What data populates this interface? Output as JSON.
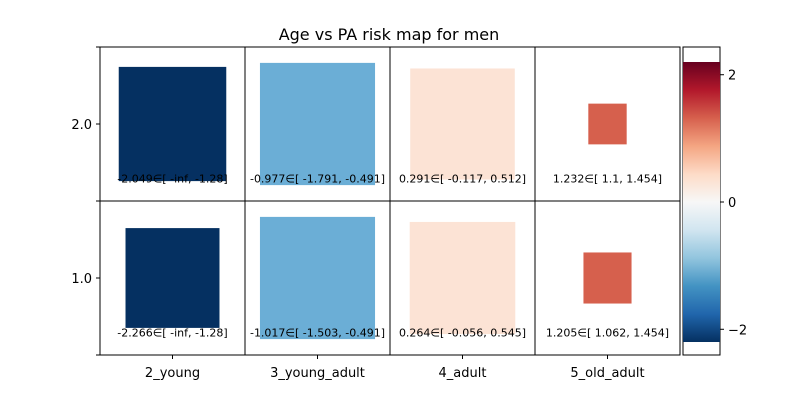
{
  "chart_data": {
    "type": "heatmap",
    "title": "Age vs PA risk map for men",
    "xlabel": "",
    "ylabel": "",
    "x_categories": [
      "2_young",
      "3_young_adult",
      "4_adult",
      "5_old_adult"
    ],
    "y_categories": [
      "2.0",
      "1.0"
    ],
    "cells": [
      {
        "x": "2_young",
        "y": "2.0",
        "value": -2.049,
        "label": "-2.049∈[ -inf, -1.28]",
        "color": "#053061",
        "relative_size": 0.55
      },
      {
        "x": "3_young_adult",
        "y": "2.0",
        "value": -0.977,
        "label": "-0.977∈[ -1.791, -0.491]",
        "color": "#6baed6",
        "relative_size": 0.63
      },
      {
        "x": "4_adult",
        "y": "2.0",
        "value": 0.291,
        "label": "0.291∈[ -0.117, 0.512]",
        "color": "#fce3d5",
        "relative_size": 0.52
      },
      {
        "x": "5_old_adult",
        "y": "2.0",
        "value": 1.232,
        "label": "1.232∈[ 1.1, 1.454]",
        "color": "#d6604d",
        "relative_size": 0.07
      },
      {
        "x": "2_young",
        "y": "1.0",
        "value": -2.266,
        "label": "-2.266∈[ -inf, -1.28]",
        "color": "#053061",
        "relative_size": 0.42
      },
      {
        "x": "3_young_adult",
        "y": "1.0",
        "value": -1.017,
        "label": "-1.017∈[ -1.503, -0.491]",
        "color": "#6baed6",
        "relative_size": 0.63
      },
      {
        "x": "4_adult",
        "y": "1.0",
        "value": 0.264,
        "label": "0.264∈[ -0.056, 0.545]",
        "color": "#fce3d5",
        "relative_size": 0.53
      },
      {
        "x": "5_old_adult",
        "y": "1.0",
        "value": 1.205,
        "label": "1.205∈[ 1.062, 1.454]",
        "color": "#d6604d",
        "relative_size": 0.11
      }
    ],
    "colorbar": {
      "range": [
        -2.2,
        2.2
      ],
      "ticks": [
        -2,
        0,
        2
      ],
      "tick_labels": [
        "−2",
        "0",
        "2"
      ],
      "colormap": [
        "#053061",
        "#2166ac",
        "#4393c3",
        "#92c5de",
        "#d1e5f0",
        "#f7f7f7",
        "#fddbc7",
        "#f4a582",
        "#d6604d",
        "#b2182b",
        "#67001f"
      ]
    },
    "grid": true
  }
}
